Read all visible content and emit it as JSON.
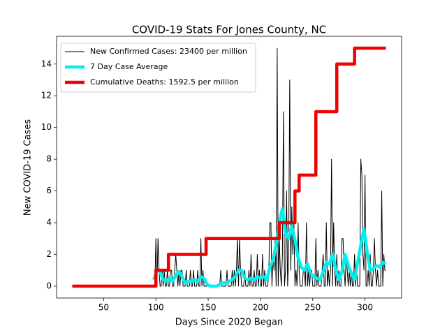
{
  "chart_data": {
    "type": "line",
    "title": "COVID-19 Stats For Jones County, NC",
    "x_label": "Days Since 2020 Began",
    "y_label": "New COVID-19 Cases",
    "xlim": [
      5,
      335
    ],
    "ylim": [
      -0.75,
      15.75
    ],
    "xticks": [
      50,
      100,
      150,
      200,
      250,
      300
    ],
    "yticks": [
      0,
      2,
      4,
      6,
      8,
      10,
      12,
      14
    ],
    "legend": "upper left",
    "series": [
      {
        "name": "New Confirmed Cases: 23400 per million",
        "color": "#000000",
        "linewidth": 1,
        "drawstyle": "default",
        "x": [
          97,
          98,
          99,
          100,
          101,
          102,
          103,
          104,
          105,
          106,
          107,
          108,
          109,
          110,
          111,
          112,
          113,
          114,
          115,
          116,
          117,
          118,
          119,
          120,
          121,
          122,
          123,
          124,
          125,
          126,
          127,
          128,
          129,
          130,
          131,
          132,
          133,
          134,
          135,
          136,
          137,
          138,
          139,
          140,
          141,
          142,
          143,
          144,
          145,
          146,
          147,
          148,
          149,
          150,
          151,
          152,
          153,
          154,
          155,
          156,
          157,
          158,
          159,
          160,
          161,
          162,
          163,
          164,
          165,
          166,
          167,
          168,
          169,
          170,
          171,
          172,
          173,
          174,
          175,
          176,
          177,
          178,
          179,
          180,
          181,
          182,
          183,
          184,
          185,
          186,
          187,
          188,
          189,
          190,
          191,
          192,
          193,
          194,
          195,
          196,
          197,
          198,
          199,
          200,
          201,
          202,
          203,
          204,
          205,
          206,
          207,
          208,
          209,
          210,
          211,
          212,
          213,
          214,
          215,
          216,
          217,
          218,
          219,
          220,
          221,
          222,
          223,
          224,
          225,
          226,
          227,
          228,
          229,
          230,
          231,
          232,
          233,
          234,
          235,
          236,
          237,
          238,
          239,
          240,
          241,
          242,
          243,
          244,
          245,
          246,
          247,
          248,
          249,
          250,
          251,
          252,
          253,
          254,
          255,
          256,
          257,
          258,
          259,
          260,
          261,
          262,
          263,
          264,
          265,
          266,
          267,
          268,
          269,
          270,
          271,
          272,
          273,
          274,
          275,
          276,
          277,
          278,
          279,
          280,
          281,
          282,
          283,
          284,
          285,
          286,
          287,
          288,
          289,
          290,
          291,
          292,
          293,
          294,
          295,
          296,
          297,
          298,
          299,
          300,
          301,
          302,
          303,
          304,
          305,
          306,
          307,
          308,
          309,
          310,
          311,
          312,
          313,
          314,
          315,
          316,
          317,
          318,
          319,
          320
        ],
        "values": [
          0,
          0,
          0,
          3,
          0,
          3,
          1,
          0,
          0,
          1,
          0,
          1,
          0,
          0,
          1,
          0,
          0,
          1,
          1,
          0,
          0,
          1,
          2,
          1,
          0,
          1,
          0,
          1,
          1,
          0,
          0,
          0,
          1,
          0,
          0,
          0,
          1,
          0,
          0,
          1,
          0,
          0,
          0,
          1,
          0,
          0,
          3,
          0,
          1,
          0,
          0,
          0,
          0,
          0,
          0,
          0,
          0,
          0,
          0,
          0,
          0,
          0,
          0,
          0,
          0,
          1,
          0,
          0,
          0,
          0,
          0,
          1,
          0,
          0,
          0,
          0,
          1,
          0,
          1,
          0,
          1,
          3,
          0,
          3,
          1,
          0,
          0,
          0,
          1,
          0,
          0,
          0,
          1,
          0,
          2,
          0,
          0,
          1,
          0,
          0,
          2,
          0,
          1,
          0,
          0,
          2,
          0,
          1,
          0,
          0,
          0,
          1,
          4,
          4,
          0,
          2,
          1,
          3,
          0,
          15,
          0,
          3,
          1,
          0,
          2,
          11,
          0,
          1,
          6,
          0,
          2,
          13,
          1,
          5,
          2,
          4,
          0,
          1,
          0,
          4,
          1,
          0,
          0,
          0,
          1,
          1,
          0,
          4,
          0,
          1,
          0,
          1,
          1,
          0,
          0,
          0,
          3,
          0,
          1,
          0,
          0,
          0,
          1,
          2,
          0,
          0,
          4,
          0,
          1,
          0,
          1,
          8,
          0,
          4,
          1,
          0,
          2,
          0,
          1,
          0,
          0,
          3,
          3,
          1,
          0,
          2,
          1,
          0,
          1,
          0,
          1,
          0,
          0,
          2,
          0,
          1,
          0,
          0,
          0,
          8,
          7,
          2,
          1,
          7,
          0,
          0,
          1,
          0,
          2,
          0,
          0,
          1,
          3,
          1,
          0,
          1,
          0,
          0,
          0,
          6,
          0,
          2,
          1,
          1
        ]
      },
      {
        "name": "7 Day Case Average",
        "color": "#00f0f0",
        "linewidth": 4.5,
        "drawstyle": "default",
        "x": [
          98,
          101,
          104,
          107,
          110,
          113,
          116,
          119,
          122,
          125,
          128,
          131,
          134,
          137,
          140,
          143,
          146,
          149,
          152,
          155,
          158,
          161,
          164,
          167,
          170,
          173,
          176,
          179,
          182,
          185,
          188,
          191,
          194,
          197,
          200,
          203,
          206,
          209,
          212,
          215,
          218,
          221,
          224,
          227,
          230,
          233,
          236,
          239,
          242,
          245,
          248,
          251,
          254,
          257,
          260,
          263,
          266,
          269,
          272,
          275,
          278,
          281,
          284,
          287,
          290,
          293,
          296,
          299,
          302,
          305,
          308,
          311,
          314,
          317,
          320
        ],
        "values": [
          0.4,
          1.0,
          0.9,
          0.4,
          0.3,
          0.5,
          0.3,
          0.7,
          0.9,
          0.6,
          0.2,
          0.3,
          0.3,
          0.4,
          0.3,
          0.6,
          0.5,
          0.1,
          0,
          0,
          0,
          0.1,
          0.2,
          0.2,
          0.3,
          0.4,
          0.6,
          1.0,
          1.0,
          0.5,
          0.4,
          0.5,
          0.4,
          0.6,
          0.5,
          0.6,
          0.4,
          1.2,
          1.6,
          2.6,
          4.0,
          4.9,
          3.3,
          3.0,
          3.8,
          2.9,
          1.8,
          1.2,
          1.0,
          1.4,
          0.8,
          0.6,
          0.5,
          0.4,
          0.9,
          1.5,
          1.4,
          2.0,
          1.1,
          0.4,
          0.9,
          2.0,
          1.3,
          0.8,
          0.4,
          1.5,
          2.6,
          3.6,
          2.2,
          1.0,
          1.1,
          1.3,
          1.2,
          1.5,
          1.4
        ]
      },
      {
        "name": "Cumulative Deaths: 1592.5 per million",
        "color": "#f00000",
        "linewidth": 4.5,
        "drawstyle": "steps-post",
        "x": [
          20,
          100,
          112,
          148,
          218,
          233,
          237,
          253,
          273,
          290,
          320
        ],
        "values": [
          0,
          1,
          2,
          3,
          4,
          6,
          7,
          11,
          14,
          15,
          15
        ]
      }
    ]
  }
}
